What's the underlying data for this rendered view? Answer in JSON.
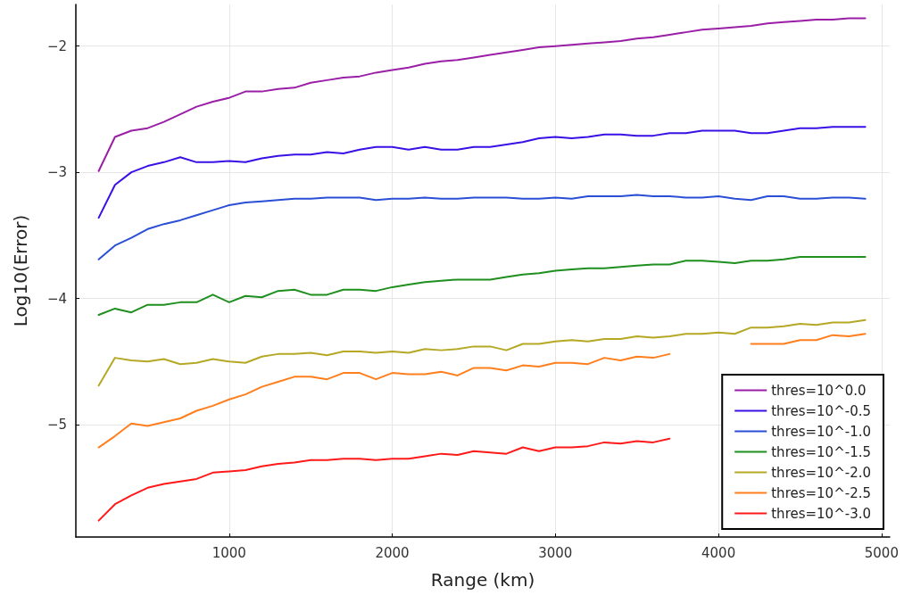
{
  "chart_data": {
    "type": "line",
    "xlabel": "Range (km)",
    "ylabel": "Log10(Error)",
    "x": [
      200,
      300,
      400,
      500,
      600,
      700,
      800,
      900,
      1000,
      1100,
      1200,
      1300,
      1400,
      1500,
      1600,
      1700,
      1800,
      1900,
      2000,
      2100,
      2200,
      2300,
      2400,
      2500,
      2600,
      2700,
      2800,
      2900,
      3000,
      3100,
      3200,
      3300,
      3400,
      3500,
      3600,
      3700,
      3800,
      3900,
      4000,
      4100,
      4200,
      4300,
      4400,
      4500,
      4600,
      4700,
      4800,
      4900
    ],
    "series": [
      {
        "name": "thres=10^0.0",
        "color": "#9a1fa6",
        "values": [
          -2.99,
          -2.72,
          -2.67,
          -2.65,
          -2.6,
          -2.54,
          -2.48,
          -2.44,
          -2.41,
          -2.36,
          -2.36,
          -2.34,
          -2.33,
          -2.29,
          -2.27,
          -2.25,
          -2.24,
          -2.21,
          -2.19,
          -2.17,
          -2.14,
          -2.12,
          -2.11,
          -2.09,
          -2.07,
          -2.05,
          -2.03,
          -2.01,
          -2.0,
          -1.99,
          -1.98,
          -1.97,
          -1.96,
          -1.94,
          -1.93,
          -1.91,
          -1.89,
          -1.87,
          -1.86,
          -1.85,
          -1.84,
          -1.82,
          -1.81,
          -1.8,
          -1.79,
          -1.79,
          -1.78,
          -1.78
        ]
      },
      {
        "name": "thres=10^-0.5",
        "color": "#3a10e6",
        "values": [
          -3.36,
          -3.1,
          -3.0,
          -2.95,
          -2.92,
          -2.88,
          -2.92,
          -2.92,
          -2.91,
          -2.92,
          -2.89,
          -2.87,
          -2.86,
          -2.86,
          -2.84,
          -2.85,
          -2.82,
          -2.8,
          -2.8,
          -2.82,
          -2.8,
          -2.82,
          -2.82,
          -2.8,
          -2.8,
          -2.78,
          -2.76,
          -2.73,
          -2.72,
          -2.73,
          -2.72,
          -2.7,
          -2.7,
          -2.71,
          -2.71,
          -2.69,
          -2.69,
          -2.67,
          -2.67,
          -2.67,
          -2.69,
          -2.69,
          -2.67,
          -2.65,
          -2.65,
          -2.64,
          -2.64,
          -2.64
        ]
      },
      {
        "name": "thres=10^-1.0",
        "color": "#2a4fd6",
        "values": [
          -3.69,
          -3.58,
          -3.52,
          -3.45,
          -3.41,
          -3.38,
          -3.34,
          -3.3,
          -3.26,
          -3.24,
          -3.23,
          -3.22,
          -3.21,
          -3.21,
          -3.2,
          -3.2,
          -3.2,
          -3.22,
          -3.21,
          -3.21,
          -3.2,
          -3.21,
          -3.21,
          -3.2,
          -3.2,
          -3.2,
          -3.21,
          -3.21,
          -3.2,
          -3.21,
          -3.19,
          -3.19,
          -3.19,
          -3.18,
          -3.19,
          -3.19,
          -3.2,
          -3.2,
          -3.19,
          -3.21,
          -3.22,
          -3.19,
          -3.19,
          -3.21,
          -3.21,
          -3.2,
          -3.2,
          -3.21
        ]
      },
      {
        "name": "thres=10^-1.5",
        "color": "#1f8f1f",
        "values": [
          -4.13,
          -4.08,
          -4.11,
          -4.05,
          -4.05,
          -4.03,
          -4.03,
          -3.97,
          -4.03,
          -3.98,
          -3.99,
          -3.94,
          -3.93,
          -3.97,
          -3.97,
          -3.93,
          -3.93,
          -3.94,
          -3.91,
          -3.89,
          -3.87,
          -3.86,
          -3.85,
          -3.85,
          -3.85,
          -3.83,
          -3.81,
          -3.8,
          -3.78,
          -3.77,
          -3.76,
          -3.76,
          -3.75,
          -3.74,
          -3.73,
          -3.73,
          -3.7,
          -3.7,
          -3.71,
          -3.72,
          -3.7,
          -3.7,
          -3.69,
          -3.67,
          -3.67,
          -3.67,
          -3.67,
          -3.67
        ]
      },
      {
        "name": "thres=10^-2.0",
        "color": "#b5a825",
        "values": [
          -4.69,
          -4.47,
          -4.49,
          -4.5,
          -4.48,
          -4.52,
          -4.51,
          -4.48,
          -4.5,
          -4.51,
          -4.46,
          -4.44,
          -4.44,
          -4.43,
          -4.45,
          -4.42,
          -4.42,
          -4.43,
          -4.42,
          -4.43,
          -4.4,
          -4.41,
          -4.4,
          -4.38,
          -4.38,
          -4.41,
          -4.36,
          -4.36,
          -4.34,
          -4.33,
          -4.34,
          -4.32,
          -4.32,
          -4.3,
          -4.31,
          -4.3,
          -4.28,
          -4.28,
          -4.27,
          -4.28,
          -4.23,
          -4.23,
          -4.22,
          -4.2,
          -4.21,
          -4.19,
          -4.19,
          -4.17
        ]
      },
      {
        "name": "thres=10^-2.5",
        "color": "#ff7f1e",
        "values": [
          -5.18,
          -5.09,
          -4.99,
          -5.01,
          -4.98,
          -4.95,
          -4.89,
          -4.85,
          -4.8,
          -4.76,
          -4.7,
          -4.66,
          -4.62,
          -4.62,
          -4.64,
          -4.59,
          -4.59,
          -4.64,
          -4.59,
          -4.6,
          -4.6,
          -4.58,
          -4.61,
          -4.55,
          -4.55,
          -4.57,
          -4.53,
          -4.54,
          -4.51,
          -4.51,
          -4.52,
          -4.47,
          -4.49,
          -4.46,
          -4.47,
          -4.44,
          null,
          null,
          null,
          null,
          -4.36,
          -4.36,
          -4.36,
          -4.33,
          -4.33,
          -4.29,
          -4.3,
          -4.28
        ]
      },
      {
        "name": "thres=10^-3.0",
        "color": "#ff1a1a",
        "values": [
          -5.76,
          -5.63,
          -5.56,
          -5.5,
          -5.47,
          -5.45,
          -5.43,
          -5.38,
          -5.37,
          -5.36,
          -5.33,
          -5.31,
          -5.3,
          -5.28,
          -5.28,
          -5.27,
          -5.27,
          -5.28,
          -5.27,
          -5.27,
          -5.25,
          -5.23,
          -5.24,
          -5.21,
          -5.22,
          -5.23,
          -5.18,
          -5.21,
          -5.18,
          -5.18,
          -5.17,
          -5.14,
          -5.15,
          -5.13,
          -5.14,
          -5.11,
          null,
          null,
          null,
          null,
          null,
          null,
          null,
          null,
          null,
          null,
          null,
          null
        ]
      }
    ],
    "xlim": [
      60,
      5050
    ],
    "xticks": [
      1000,
      2000,
      3000,
      4000,
      5000
    ],
    "ylim": [
      -5.89,
      -1.67
    ],
    "yticks": [
      {
        "value": -5,
        "label": "−5"
      },
      {
        "value": -4,
        "label": "−4"
      },
      {
        "value": -3,
        "label": "−3"
      },
      {
        "value": -2,
        "label": "−2"
      }
    ],
    "grid": true,
    "legend": "bottom right",
    "marker": "none",
    "line_style": "solid"
  }
}
